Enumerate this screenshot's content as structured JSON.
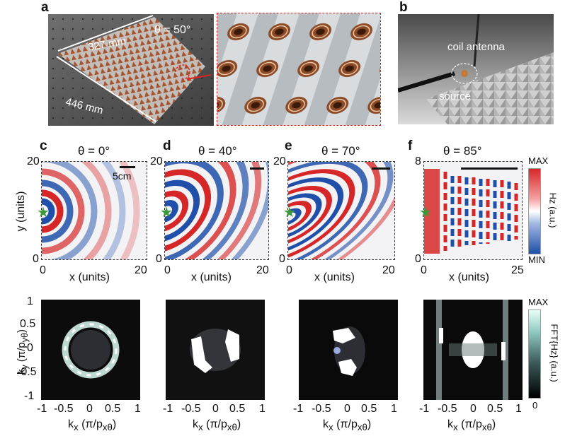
{
  "panels": {
    "a": "a",
    "b": "b",
    "c": "c",
    "d": "d",
    "e": "e",
    "f": "f"
  },
  "photo_a": {
    "theta": "θ = 50°",
    "width_label": "327 mm",
    "length_label": "446 mm"
  },
  "photo_b": {
    "coil_label": "coil antenna",
    "source_label": "source"
  },
  "field_maps": [
    {
      "theta": "θ = 0°",
      "y_max": "20",
      "y_min": "0",
      "x_min": "0",
      "x_max": "20",
      "xlabel": "x (units)",
      "scale": "5cm"
    },
    {
      "theta": "θ = 40°",
      "y_max": "20",
      "y_min": "0",
      "x_min": "0",
      "x_max": "20",
      "xlabel": "x (units)"
    },
    {
      "theta": "θ = 70°",
      "y_max": "20",
      "y_min": "0",
      "x_min": "0",
      "x_max": "20",
      "xlabel": "x (units)"
    },
    {
      "theta": "θ = 85°",
      "y_max": "8",
      "y_min": "0",
      "x_min": "0",
      "x_max": "25",
      "xlabel": "x (units)"
    }
  ],
  "field_ylabel": "y (units)",
  "colorbar_top": {
    "max": "MAX",
    "min": "MIN",
    "label": "Hz (a.u.)",
    "colors": [
      "#d62728",
      "#ffffff",
      "#1f4fa8"
    ]
  },
  "fft": {
    "ylabel": "k",
    "ylabel_sub": "y",
    "ylabel_unit": "(π/p",
    "ylabel_unit_sub": "yθ",
    "ylabel_close": ")",
    "xlabel": "k",
    "xlabel_sub": "x",
    "xlabel_unit": "(π/p",
    "xlabel_unit_sub": "xθ",
    "xlabel_close": ")",
    "y_ticks": [
      "1",
      "0.5",
      "0",
      "-0.5",
      "-1"
    ],
    "x_ticks": [
      "-1",
      "-0.5",
      "0",
      "0.5",
      "1"
    ]
  },
  "colorbar_bottom": {
    "max": "MAX",
    "min": "0",
    "label": "FFT{Hz} (a.u.)",
    "colors": [
      "#e8fff8",
      "#5aa",
      "#000000"
    ]
  }
}
